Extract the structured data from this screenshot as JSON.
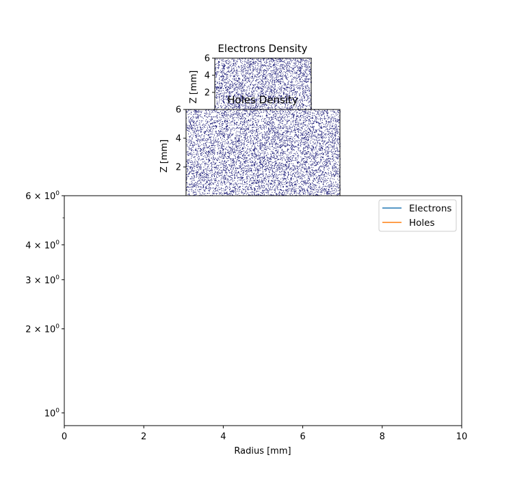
{
  "colors": {
    "electrons": "#1f77b4",
    "holes": "#ff7f0e",
    "density_dots": "#0b0b6e"
  },
  "chart_data": [
    {
      "type": "heatmap",
      "title": "Electrons Density",
      "ylabel": "Z [mm]",
      "yticks": [
        "2",
        "4",
        "6"
      ],
      "ylim": [
        0,
        6
      ]
    },
    {
      "type": "heatmap",
      "title": "Holes Density",
      "ylabel": "Z [mm]",
      "yticks": [
        "2",
        "4",
        "6"
      ],
      "ylim": [
        0,
        6
      ]
    },
    {
      "type": "line",
      "xlabel": "Radius [mm]",
      "xlim": [
        0,
        10
      ],
      "xticks": [
        "0",
        "2",
        "4",
        "6",
        "8",
        "10"
      ],
      "yscale": "log",
      "ylim": [
        0.9,
        6
      ],
      "yticks": [
        {
          "value": 1,
          "base": "10",
          "exp": "0",
          "coef": ""
        },
        {
          "value": 2,
          "base": "10",
          "exp": "0",
          "coef": "2 × "
        },
        {
          "value": 3,
          "base": "10",
          "exp": "0",
          "coef": "3 × "
        },
        {
          "value": 4,
          "base": "10",
          "exp": "0",
          "coef": "4 × "
        },
        {
          "value": 6,
          "base": "10",
          "exp": "0",
          "coef": "6 × "
        }
      ],
      "minor_ticks": [
        5
      ],
      "legend": "top-right",
      "series": [
        {
          "name": "Electrons",
          "color": "#1f77b4",
          "points": []
        },
        {
          "name": "Holes",
          "color": "#ff7f0e",
          "points": []
        }
      ]
    }
  ]
}
